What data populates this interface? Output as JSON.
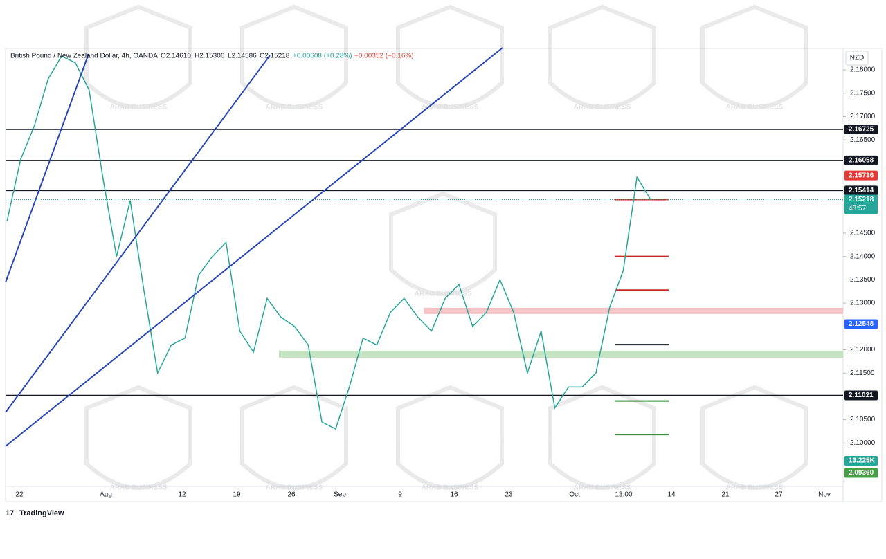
{
  "header": {
    "symbol": "British Pound / New Zealand Dollar, 4h, OANDA",
    "open": "O2.14610",
    "high": "H2.15306",
    "low": "L2.14586",
    "close": "C2.15218",
    "change": "+0.00608 (+0.28%)",
    "change2": "−0.00352 (−0.16%)"
  },
  "currency": "NZD",
  "watermark": "ARAB BUSINESS",
  "ylim": [
    2.0907,
    2.1846
  ],
  "yticks": [
    {
      "value": 2.18,
      "label": "2.18000"
    },
    {
      "value": 2.175,
      "label": "2.17500"
    },
    {
      "value": 2.17,
      "label": "2.17000"
    },
    {
      "value": 2.165,
      "label": "2.16500"
    },
    {
      "value": 2.145,
      "label": "2.14500"
    },
    {
      "value": 2.14,
      "label": "2.14000"
    },
    {
      "value": 2.135,
      "label": "2.13500"
    },
    {
      "value": 2.13,
      "label": "2.13000"
    },
    {
      "value": 2.12,
      "label": "2.12000"
    },
    {
      "value": 2.115,
      "label": "2.11500"
    },
    {
      "value": 2.105,
      "label": "2.10500"
    },
    {
      "value": 2.1,
      "label": "2.10000"
    }
  ],
  "dates": [
    "22",
    "Aug",
    "12",
    "19",
    "26",
    "Sep",
    "9",
    "16",
    "23",
    "Oct",
    "13:00",
    "14",
    "21",
    "27",
    "Nov"
  ],
  "price_path": [
    2.1475,
    2.1608,
    2.168,
    2.178,
    2.183,
    2.1815,
    2.1757,
    2.157,
    2.14,
    2.152,
    2.1327,
    2.115,
    2.121,
    2.1225,
    2.136,
    2.14,
    2.143,
    2.124,
    2.1195,
    2.131,
    2.127,
    2.125,
    2.121,
    2.1045,
    2.103,
    2.112,
    2.1225,
    2.121,
    2.128,
    2.131,
    2.127,
    2.124,
    2.131,
    2.134,
    2.125,
    2.128,
    2.135,
    2.128,
    2.115,
    2.124,
    2.1075,
    2.112,
    2.112,
    2.115,
    2.129,
    2.137,
    2.157,
    2.15218
  ],
  "levels": [
    2.16725,
    2.16058,
    2.15414,
    2.11021
  ],
  "short_levels": [
    {
      "value": 2.15218,
      "color": "#c62828"
    },
    {
      "value": 2.14,
      "color": "#c62828"
    },
    {
      "value": 2.1328,
      "color": "#c62828"
    },
    {
      "value": 2.1211,
      "color": "#131722"
    },
    {
      "value": 2.109,
      "color": "#388e3c"
    },
    {
      "value": 2.1018,
      "color": "#388e3c"
    }
  ],
  "zones": [
    {
      "top": 2.129,
      "bottom": 2.1277,
      "color": "#f4b4b8"
    },
    {
      "top": 2.1198,
      "bottom": 2.1183,
      "color": "#b5dcb0"
    }
  ],
  "badges": [
    {
      "value": 2.16725,
      "label": "2.16725",
      "color": "#131722"
    },
    {
      "value": 2.16058,
      "label": "2.16058",
      "color": "#131722"
    },
    {
      "value": 2.15736,
      "label": "2.15736",
      "color": "#e53935"
    },
    {
      "value": 2.15414,
      "label": "2.15414",
      "color": "#131722"
    },
    {
      "value": 2.15218,
      "label": "2.15218",
      "color": "#26a69a"
    },
    {
      "value": 2.12548,
      "label": "2.12548",
      "color": "#2962ff"
    },
    {
      "value": 2.11021,
      "label": "2.11021",
      "color": "#131722"
    },
    {
      "value": 2.0936,
      "label": "2.09360",
      "color": "#43a047"
    }
  ],
  "countdown": "48:57",
  "volume_label": "13.225K",
  "brand": "TradingView"
}
